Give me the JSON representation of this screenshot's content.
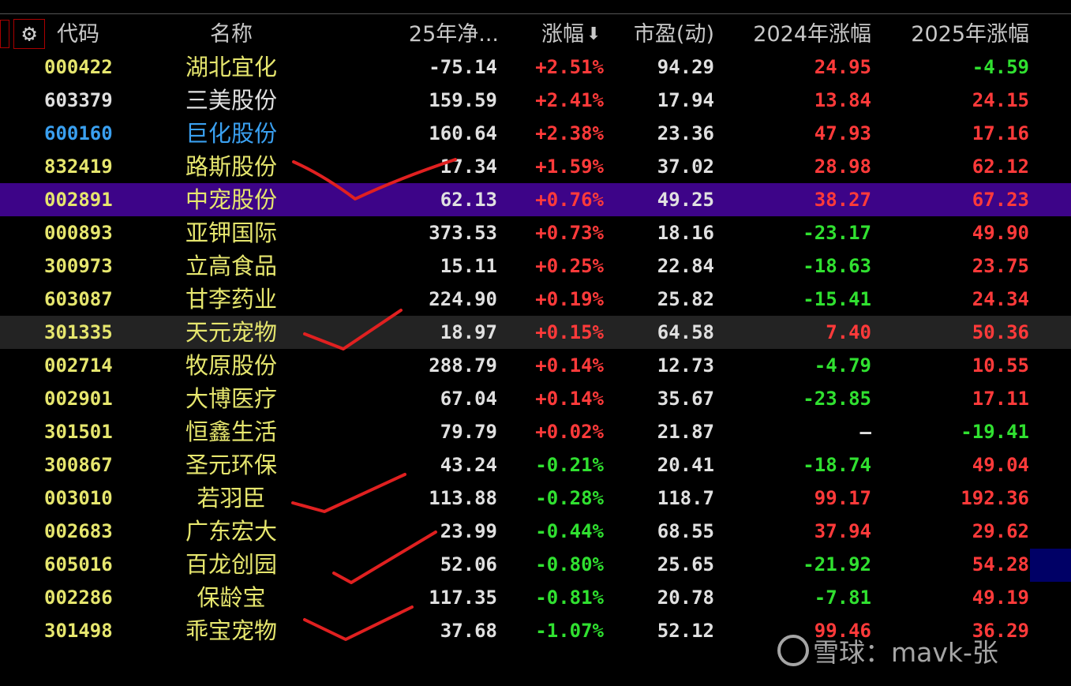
{
  "table": {
    "header": [
      "代码",
      "名称",
      "25年净...",
      "涨幅",
      "市盈(动)",
      "2024年涨幅",
      "2025年涨幅"
    ],
    "rows": [
      [
        "000422",
        "湖北宜化",
        "-75.14",
        "+2.51%",
        "94.29",
        "24.95",
        "-4.59"
      ],
      [
        "603379",
        "三美股份",
        "159.59",
        "+2.41%",
        "17.94",
        "13.84",
        "24.15"
      ],
      [
        "600160",
        "巨化股份",
        "160.64",
        "+2.38%",
        "23.36",
        "47.93",
        "17.16"
      ],
      [
        "832419",
        "路斯股份",
        "17.34",
        "+1.59%",
        "37.02",
        "28.98",
        "62.12"
      ],
      [
        "002891",
        "中宠股份",
        "62.13",
        "+0.76%",
        "49.25",
        "38.27",
        "67.23"
      ],
      [
        "000893",
        "亚钾国际",
        "373.53",
        "+0.73%",
        "18.16",
        "-23.17",
        "49.90"
      ],
      [
        "300973",
        "立高食品",
        "15.11",
        "+0.25%",
        "22.84",
        "-18.63",
        "23.75"
      ],
      [
        "603087",
        "甘李药业",
        "224.90",
        "+0.19%",
        "25.82",
        "-15.41",
        "24.34"
      ],
      [
        "301335",
        "天元宠物",
        "18.97",
        "+0.15%",
        "64.58",
        "7.40",
        "50.36"
      ],
      [
        "002714",
        "牧原股份",
        "288.79",
        "+0.14%",
        "12.73",
        "-4.79",
        "10.55"
      ],
      [
        "002901",
        "大博医疗",
        "67.04",
        "+0.14%",
        "35.67",
        "-23.85",
        "17.11"
      ],
      [
        "301501",
        "恒鑫生活",
        "79.79",
        "+0.02%",
        "21.87",
        "—",
        "-19.41"
      ],
      [
        "300867",
        "圣元环保",
        "43.24",
        "-0.21%",
        "20.41",
        "-18.74",
        "49.04"
      ],
      [
        "003010",
        "若羽臣",
        "113.88",
        "-0.28%",
        "118.7",
        "99.17",
        "192.36"
      ],
      [
        "002683",
        "广东宏大",
        "23.99",
        "-0.44%",
        "68.55",
        "37.94",
        "29.62"
      ],
      [
        "605016",
        "百龙创园",
        "52.06",
        "-0.80%",
        "25.65",
        "-21.92",
        "54.28"
      ],
      [
        "002286",
        "保龄宝",
        "117.35",
        "-0.81%",
        "20.78",
        "-7.81",
        "49.19"
      ],
      [
        "301498",
        "乖宝宠物",
        "37.68",
        "-1.07%",
        "52.12",
        "99.46",
        "36.29"
      ]
    ]
  },
  "watermark": "雪球：mavk-张"
}
